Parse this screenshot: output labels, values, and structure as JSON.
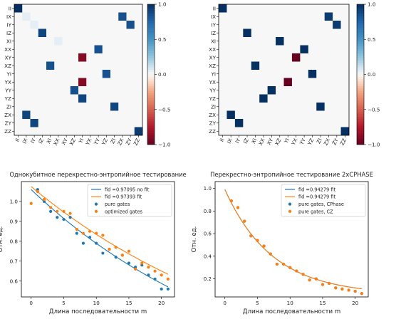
{
  "chart_data": [
    {
      "type": "heatmap",
      "title": "",
      "labels": [
        "II",
        "IX",
        "IY",
        "IZ",
        "XI",
        "XX",
        "XY",
        "XZ",
        "YI",
        "YX",
        "YY",
        "YZ",
        "ZI",
        "ZX",
        "ZY",
        "ZZ"
      ],
      "matrix": [
        [
          1,
          0,
          0,
          0,
          0,
          0,
          0,
          0,
          0,
          0,
          0,
          0,
          0,
          0,
          0,
          0
        ],
        [
          0,
          0.05,
          0,
          0,
          0,
          0,
          0,
          0,
          0,
          0,
          0,
          0,
          0,
          0.85,
          0,
          0
        ],
        [
          0,
          0,
          0.05,
          0,
          0,
          0,
          0,
          0,
          0,
          0,
          0,
          0,
          0,
          0,
          0.85,
          0
        ],
        [
          0,
          0,
          0,
          0.9,
          0,
          0,
          0,
          0,
          0,
          0,
          0,
          0,
          0,
          0,
          0,
          0
        ],
        [
          0,
          0,
          0,
          0,
          0,
          0.05,
          0,
          0,
          0,
          0,
          0,
          0,
          0,
          0,
          0,
          0
        ],
        [
          0,
          0,
          0,
          0,
          0,
          0,
          0,
          0,
          0,
          0,
          0.85,
          0,
          0,
          0,
          0,
          0
        ],
        [
          0,
          0,
          0,
          0,
          0,
          0,
          0,
          0,
          -0.9,
          0,
          0,
          0,
          0,
          0,
          0,
          0
        ],
        [
          0,
          0,
          0,
          0,
          0.85,
          0,
          0,
          0,
          0,
          0,
          0,
          0,
          0,
          0,
          0,
          0
        ],
        [
          0,
          0,
          0,
          0,
          0,
          0,
          0,
          0,
          0,
          0,
          0,
          0.85,
          0,
          0,
          0,
          0
        ],
        [
          0,
          0,
          0,
          0,
          0,
          0,
          0,
          0,
          -0.9,
          0,
          0,
          0,
          0,
          0,
          0,
          0
        ],
        [
          0,
          0,
          0,
          0,
          0,
          0,
          0,
          0.85,
          0,
          0,
          0,
          0,
          0,
          0,
          0,
          0
        ],
        [
          0,
          0,
          0,
          0,
          0,
          0,
          0,
          0,
          0.9,
          0,
          0,
          0,
          0,
          0,
          0,
          0
        ],
        [
          0,
          0,
          0,
          0,
          0,
          0,
          0,
          0,
          0,
          0,
          0,
          0,
          0.9,
          0,
          0,
          0
        ],
        [
          0,
          0.9,
          0,
          0,
          0,
          0,
          0,
          0,
          0,
          0,
          0,
          0,
          0,
          0,
          0,
          0
        ],
        [
          0,
          0,
          0.9,
          0,
          0,
          0,
          0,
          0,
          0,
          0,
          0,
          0,
          0,
          0,
          0,
          0
        ],
        [
          0,
          0,
          0,
          0,
          0,
          0,
          0,
          0,
          0,
          0,
          0,
          0,
          0,
          0,
          0,
          0.95
        ]
      ],
      "colorbar_ticks": [
        "1.0",
        "0.5",
        "0.0",
        "−0.5",
        "−1.0"
      ],
      "colorbar_range": [
        -1,
        1
      ],
      "colormap": "RdBu"
    },
    {
      "type": "heatmap",
      "title": "",
      "labels": [
        "II",
        "IX",
        "IY",
        "IZ",
        "XI",
        "XX",
        "XY",
        "XZ",
        "YI",
        "YX",
        "YY",
        "YZ",
        "ZI",
        "ZX",
        "ZY",
        "ZZ"
      ],
      "matrix": [
        [
          1,
          0,
          0,
          0,
          0,
          0,
          0,
          0,
          0,
          0,
          0,
          0,
          0,
          0,
          0,
          0
        ],
        [
          0,
          0,
          0,
          0,
          0,
          0,
          0,
          0,
          0,
          0,
          0,
          0,
          0,
          0.95,
          0,
          0
        ],
        [
          0,
          0,
          0,
          0,
          0,
          0,
          0,
          0,
          0,
          0,
          0,
          0,
          0,
          0,
          0.95,
          0
        ],
        [
          0,
          0,
          0,
          1,
          0,
          0,
          0,
          0,
          0,
          0,
          0,
          0,
          0,
          0,
          0,
          0
        ],
        [
          0,
          0,
          0,
          0,
          0,
          0,
          0,
          1,
          0,
          0,
          0,
          0,
          0,
          0,
          0,
          0
        ],
        [
          0,
          0,
          0,
          0,
          0,
          0,
          0,
          0,
          0,
          0,
          1,
          0,
          0,
          0,
          0,
          0
        ],
        [
          0,
          0,
          0,
          0,
          0,
          0,
          0,
          0,
          0,
          -1,
          0,
          0,
          0,
          0,
          0,
          0
        ],
        [
          0,
          0,
          0,
          0,
          1,
          0,
          0,
          0,
          0,
          0,
          0,
          0,
          0,
          0,
          0,
          0
        ],
        [
          0,
          0,
          0,
          0,
          0,
          0,
          0,
          0,
          0,
          0,
          0,
          1,
          0,
          0,
          0,
          0
        ],
        [
          0,
          0,
          0,
          0,
          0,
          0,
          0,
          0,
          -1,
          0,
          0,
          0,
          0,
          0,
          0,
          0
        ],
        [
          0,
          0,
          0,
          0,
          0,
          0,
          1,
          0,
          0,
          0,
          0,
          0,
          0,
          0,
          0,
          0
        ],
        [
          0,
          0,
          0,
          0,
          0,
          1,
          0,
          0,
          0,
          0,
          0,
          0,
          0,
          0,
          0,
          0
        ],
        [
          0,
          0,
          0,
          0,
          0,
          0,
          0,
          0,
          0,
          0,
          0,
          0,
          1,
          0,
          0,
          0
        ],
        [
          0,
          1,
          0,
          0,
          0,
          0,
          0,
          0,
          0,
          0,
          0,
          0,
          0,
          0,
          0,
          0
        ],
        [
          0,
          0,
          1,
          0,
          0,
          0,
          0,
          0,
          0,
          0,
          0,
          0,
          0,
          0,
          0,
          0
        ],
        [
          0,
          0,
          0,
          0,
          0,
          0,
          0,
          0,
          0,
          0,
          0,
          0,
          0,
          0,
          0,
          1
        ]
      ],
      "colorbar_ticks": [
        "1.0",
        "0.5",
        "0.0",
        "−0.5",
        "−1.0"
      ],
      "colorbar_range": [
        -1,
        1
      ],
      "colormap": "RdBu"
    },
    {
      "type": "scatter",
      "title": "Однокубитное перекрестно-энтропийное тестирование",
      "xlabel": "Длина последовательности m",
      "ylabel": "Отн. ед.",
      "xlim": [
        -1.5,
        22
      ],
      "ylim": [
        0.52,
        1.1
      ],
      "xticks": [
        "0",
        "5",
        "10",
        "15",
        "20"
      ],
      "xtick_values": [
        0,
        5,
        10,
        15,
        20
      ],
      "yticks": [
        "0.6",
        "0.7",
        "0.8",
        "0.9",
        "1.0"
      ],
      "ytick_values": [
        0.6,
        0.7,
        0.8,
        0.9,
        1.0
      ],
      "legend_position": "top-right",
      "series": [
        {
          "name": "fid =0.97095 no fit",
          "kind": "line",
          "color": "#1f77b4",
          "fit": {
            "a": 1.06,
            "b": 0.97095,
            "c": 0.0
          },
          "x_range": [
            0,
            21
          ]
        },
        {
          "name": "fid =0.97393 fit",
          "kind": "line",
          "color": "#ff7f0e",
          "fit": {
            "a": 1.035,
            "b": 0.97393,
            "c": 0.04
          },
          "x_range": [
            0,
            21
          ]
        },
        {
          "name": "pure gates",
          "kind": "scatter",
          "color": "#1f77b4",
          "x": [
            1,
            2,
            3,
            4,
            5,
            6,
            7,
            8,
            9,
            10,
            11,
            12,
            13,
            14,
            15,
            16,
            17,
            18,
            19,
            20,
            21
          ],
          "y": [
            1.06,
            1.0,
            0.95,
            0.92,
            0.91,
            0.92,
            0.84,
            0.79,
            0.82,
            0.79,
            0.74,
            0.76,
            0.72,
            0.73,
            0.69,
            0.67,
            0.68,
            0.63,
            0.61,
            0.56,
            0.56
          ]
        },
        {
          "name": "optimized gates",
          "kind": "scatter",
          "color": "#ff7f0e",
          "x": [
            0,
            1,
            2,
            3,
            4,
            5,
            6,
            7,
            8,
            9,
            10,
            11,
            12,
            13,
            14,
            15,
            16,
            17,
            18,
            19,
            20,
            21
          ],
          "y": [
            0.99,
            1.05,
            1.01,
            0.97,
            0.95,
            0.95,
            0.94,
            0.86,
            0.84,
            0.85,
            0.84,
            0.83,
            0.76,
            0.77,
            0.73,
            0.75,
            0.66,
            0.69,
            0.67,
            0.65,
            0.63,
            0.61
          ]
        }
      ]
    },
    {
      "type": "scatter",
      "title": "Перекрестно-энтропийное тестирование 2xCPHASE",
      "xlabel": "Длина последовательности m",
      "ylabel": "Отн. ед.",
      "xlim": [
        -1.5,
        22
      ],
      "ylim": [
        0.04,
        1.06
      ],
      "xticks": [
        "0",
        "5",
        "10",
        "15",
        "20"
      ],
      "xtick_values": [
        0,
        5,
        10,
        15,
        20
      ],
      "yticks": [
        "0.2",
        "0.4",
        "0.6",
        "0.8",
        "1.0"
      ],
      "ytick_values": [
        0.2,
        0.4,
        0.6,
        0.8,
        1.0
      ],
      "legend_position": "top-right",
      "series": [
        {
          "name": "fid =0.94279 fit",
          "kind": "line",
          "color": "#1f77b4",
          "fit": {
            "a": 0.93,
            "b": 0.872,
            "c": 0.06
          },
          "x_range": [
            0,
            21
          ]
        },
        {
          "name": "fid =0.94279 fit",
          "kind": "line",
          "color": "#ff7f0e",
          "fit": {
            "a": 0.93,
            "b": 0.872,
            "c": 0.06
          },
          "x_range": [
            0,
            21
          ]
        },
        {
          "name": "pure gates, CPhase",
          "kind": "scatter",
          "color": "#1f77b4",
          "x": [
            1,
            2,
            3,
            4,
            5,
            6,
            7,
            8,
            9,
            10,
            11,
            12,
            13,
            14,
            15,
            16,
            17,
            18,
            19,
            20,
            21
          ],
          "y": [
            0.89,
            0.83,
            0.71,
            0.58,
            0.54,
            0.49,
            0.42,
            0.33,
            0.33,
            0.3,
            0.27,
            0.24,
            0.19,
            0.2,
            0.15,
            0.16,
            0.12,
            0.11,
            0.1,
            0.09,
            0.07
          ]
        },
        {
          "name": "pure gates, CZ",
          "kind": "scatter",
          "color": "#ff7f0e",
          "x": [
            1,
            2,
            3,
            4,
            5,
            6,
            7,
            8,
            9,
            10,
            11,
            12,
            13,
            14,
            15,
            16,
            17,
            18,
            19,
            20,
            21
          ],
          "y": [
            0.89,
            0.83,
            0.71,
            0.58,
            0.54,
            0.49,
            0.42,
            0.33,
            0.33,
            0.3,
            0.27,
            0.24,
            0.19,
            0.2,
            0.15,
            0.16,
            0.12,
            0.11,
            0.1,
            0.09,
            0.07
          ]
        }
      ]
    }
  ]
}
